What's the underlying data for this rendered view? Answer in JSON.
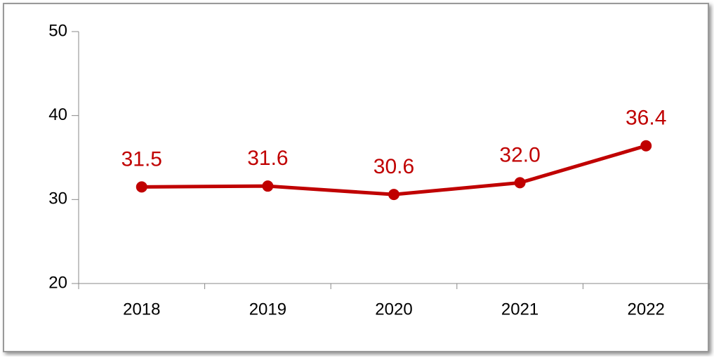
{
  "chart_data": {
    "type": "line",
    "categories": [
      "2018",
      "2019",
      "2020",
      "2021",
      "2022"
    ],
    "values": [
      31.5,
      31.6,
      30.6,
      32.0,
      36.4
    ],
    "value_labels": [
      "31.5",
      "31.6",
      "30.6",
      "32.0",
      "36.4"
    ],
    "color": "#c00000",
    "ylim": [
      20,
      50
    ],
    "yticks": [
      20,
      30,
      40,
      50
    ],
    "grid": false
  }
}
